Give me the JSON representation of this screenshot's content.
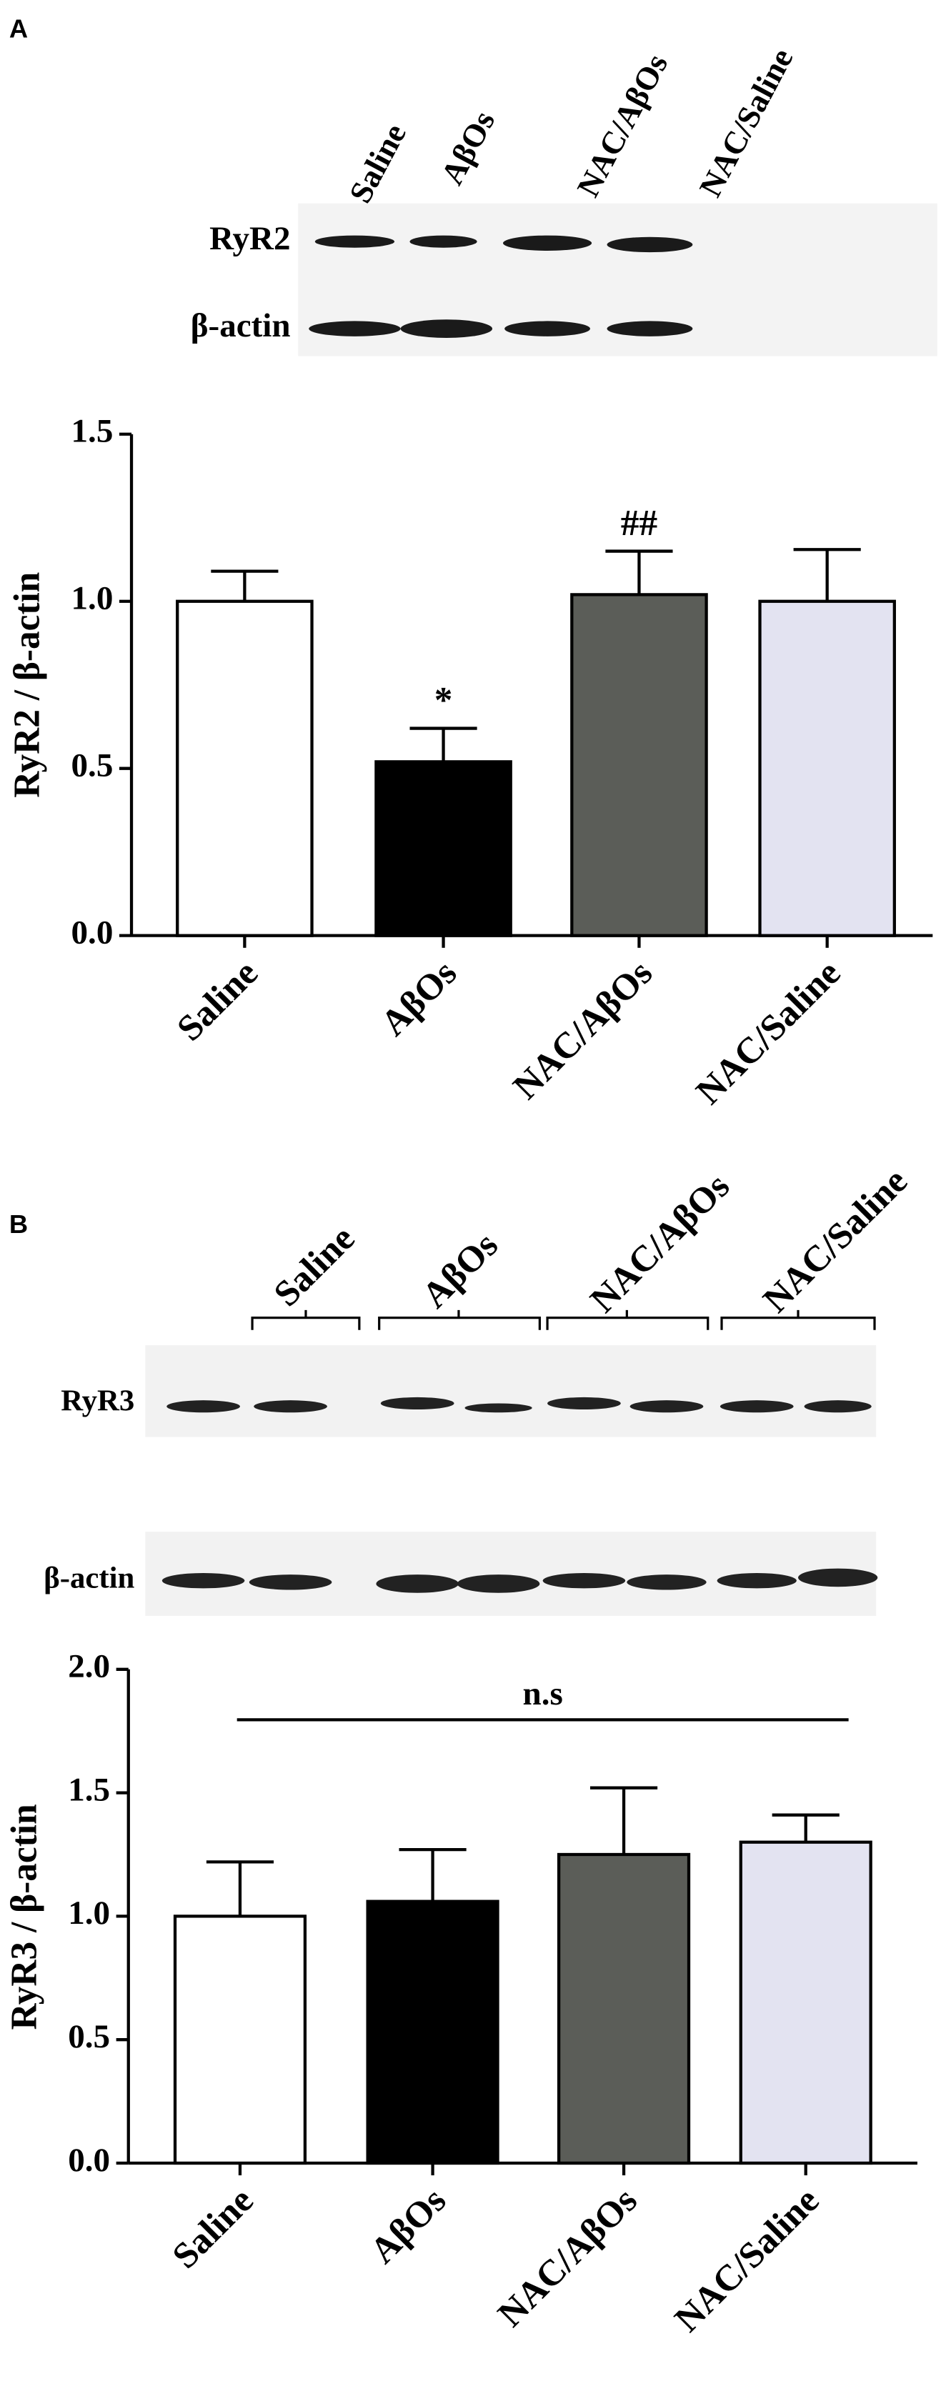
{
  "chart_data": [
    {
      "type": "bar",
      "panel": "A",
      "blot": {
        "lanes": [
          "Saline",
          "AβOs",
          "NAC/AβOs",
          "NAC/Saline"
        ],
        "rows": [
          "RyR2",
          "β-actin"
        ]
      },
      "ylabel": "RyR2 / β-actin",
      "categories": [
        "Saline",
        "AβOs",
        "NAC/AβOs",
        "NAC/Saline"
      ],
      "values": [
        1.0,
        0.52,
        1.02,
        1.0
      ],
      "errors": [
        0.09,
        0.1,
        0.13,
        0.155
      ],
      "colors": [
        "#ffffff",
        "#000000",
        "#5b5d58",
        "#e3e3f1"
      ],
      "annotations": [
        null,
        "*",
        "##",
        null
      ],
      "ylim": [
        0,
        1.5
      ],
      "yticks": [
        {
          "value": 0,
          "label": "0.0"
        },
        0.5,
        {
          "value": 1,
          "label": "1.0"
        },
        1.5
      ]
    },
    {
      "type": "bar",
      "panel": "B",
      "blot": {
        "lanes": [
          "Saline",
          "AβOs",
          "NAC/AβOs",
          "NAC/Saline"
        ],
        "rows": [
          "RyR3",
          "β-actin"
        ]
      },
      "ylabel": "RyR3 / β-actin",
      "categories": [
        "Saline",
        "AβOs",
        "NAC/AβOs",
        "NAC/Saline"
      ],
      "values": [
        1.0,
        1.06,
        1.25,
        1.3
      ],
      "errors": [
        0.22,
        0.21,
        0.27,
        0.11
      ],
      "colors": [
        "#ffffff",
        "#000000",
        "#5b5d58",
        "#e3e3f1"
      ],
      "annotation": "n.s",
      "ylim": [
        0,
        2
      ],
      "yticks": [
        {
          "value": 0,
          "label": "0.0"
        },
        0.5,
        {
          "value": 1,
          "label": "1.0"
        },
        1.5,
        {
          "value": 2,
          "label": "2.0"
        }
      ]
    }
  ]
}
